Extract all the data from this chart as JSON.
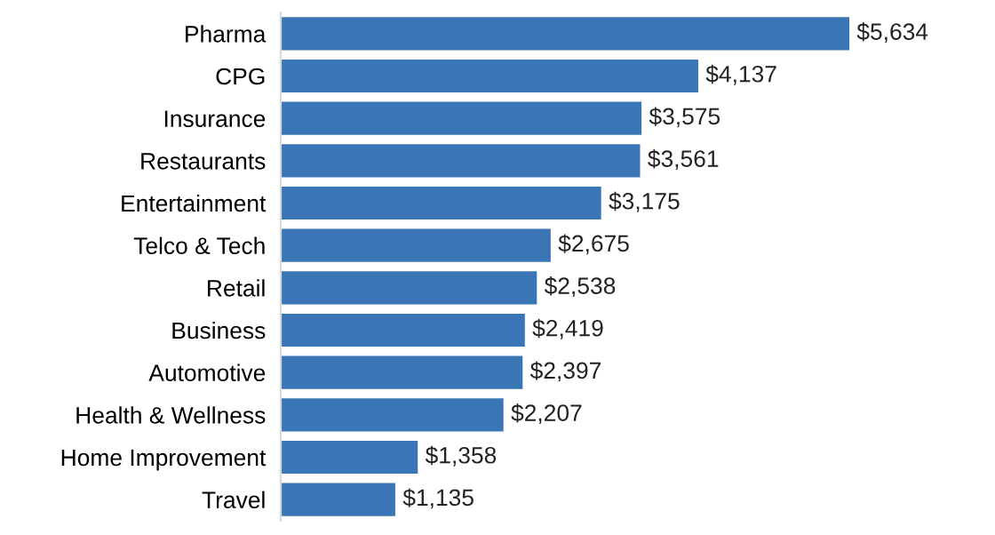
{
  "chart_data": {
    "type": "bar",
    "orientation": "horizontal",
    "categories": [
      "Pharma",
      "CPG",
      "Insurance",
      "Restaurants",
      "Entertainment",
      "Telco & Tech",
      "Retail",
      "Business",
      "Automotive",
      "Health & Wellness",
      "Home Improvement",
      "Travel"
    ],
    "values": [
      5634,
      4137,
      3575,
      3561,
      3175,
      2675,
      2538,
      2419,
      2397,
      2207,
      1358,
      1135
    ],
    "value_labels": [
      "$5,634",
      "$4,137",
      "$3,575",
      "$3,561",
      "$3,175",
      "$2,675",
      "$2,538",
      "$2,419",
      "$2,397",
      "$2,207",
      "$1,358",
      "$1,135"
    ],
    "color": "#3a75b5",
    "grid": false,
    "legend": false,
    "tick_labels": "y"
  }
}
